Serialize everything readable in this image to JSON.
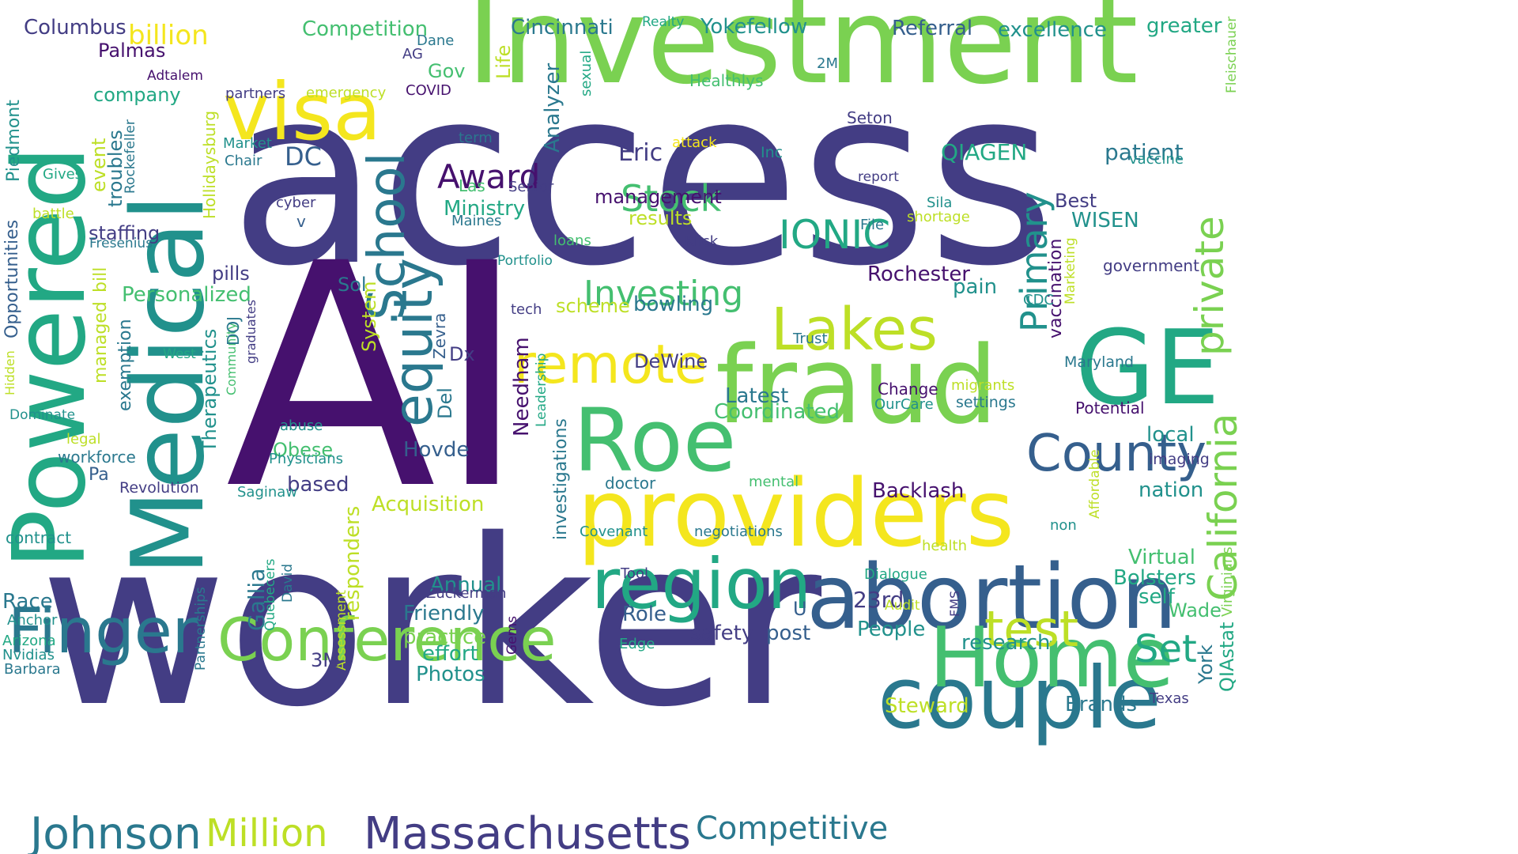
{
  "palette": {
    "dark_purple": "#46116e",
    "indigo": "#433d84",
    "blue": "#355f8d",
    "teal_blue": "#2a788e",
    "teal": "#21918c",
    "green_teal": "#22a884",
    "green": "#44bf70",
    "light_green": "#7ad151",
    "yellow_green": "#bddf26",
    "yellow": "#f4e61e",
    "background": "#ffffff"
  },
  "words": [
    "access",
    "AI",
    "worker",
    "Investment",
    "Medical",
    "Powered",
    "providers",
    "fraud",
    "abortion",
    "couple",
    "Roe",
    "GE",
    "Home",
    "region",
    "visa",
    "Finger",
    "Conference",
    "Massachusetts",
    "Johnson",
    "Million",
    "Competitive",
    "County",
    "equity",
    "School",
    "Lakes",
    "remote",
    "test",
    "California",
    "private",
    "Primary",
    "Investing",
    "Stock",
    "IONIC",
    "Award",
    "Set",
    "Cincinnati",
    "Yokefellow",
    "Referral",
    "excellence",
    "greater",
    "Competition",
    "billion",
    "Columbus",
    "Palmas",
    "Gov",
    "Dane",
    "AG",
    "Realty",
    "Life",
    "Analyzer",
    "Healthlys",
    "2M",
    "Fleischauer",
    "company",
    "Adtalem",
    "partners",
    "emergency",
    "COVID",
    "sexual",
    "Seton",
    "Eric",
    "attack",
    "QIAGEN",
    "patient",
    "vaccine",
    "Inc",
    "DC",
    "Market",
    "Chair",
    "term",
    "management",
    "results",
    "Las",
    "Senior",
    "Ministry",
    "Maines",
    "report",
    "File",
    "Sila",
    "shortage",
    "Best",
    "WISEN",
    "Gives",
    "battle",
    "Rockefeller",
    "troubles",
    "event",
    "Hollidaysburg",
    "Piedmont",
    "Opportunities",
    "staffing",
    "Fresenius",
    "Klick",
    "loans",
    "Portfolio",
    "pills",
    "Personalized",
    "bill",
    "managed",
    "exemption",
    "cyber",
    "v",
    "Sol",
    "scheme",
    "bowling",
    "tech",
    "Rochester",
    "pain",
    "government",
    "vaccination",
    "Marketing",
    "CDC",
    "Trust",
    "Maryland",
    "Zevra",
    "Dx",
    "Del",
    "System",
    "graduates",
    "Community",
    "DOJ",
    "Therapeutics",
    "West",
    "Hidden",
    "Dominate",
    "legal",
    "workforce",
    "abuse",
    "Obese",
    "Physicians",
    "based",
    "Hovde",
    "Needham",
    "Leadership",
    "investigations",
    "DeWine",
    "Latest",
    "Coordinated",
    "Change",
    "migrants",
    "OurCare",
    "settings",
    "Potential",
    "local",
    "Affordable",
    "imaging",
    "nation",
    "Backlash",
    "doctor",
    "mental",
    "Revolution",
    "Saginaw",
    "Pa",
    "contract",
    "Acquisition",
    "Covenant",
    "negotiations",
    "non",
    "health",
    "Virtual",
    "Bolsters",
    "self",
    "Wade",
    "Race",
    "Anchor",
    "Arizona",
    "Nvidias",
    "Barbara",
    "Partnerships",
    "Quebecers",
    "David",
    "Assessment",
    "responders",
    "Gallia",
    "Annual",
    "Zuckerman",
    "Friendly",
    "practice",
    "effort",
    "Photos",
    "Gems",
    "3M",
    "Role",
    "Tool",
    "safety",
    "U",
    "post",
    "23rd",
    "Dialogue",
    "Audit",
    "People",
    "FMS",
    "research",
    "Edge",
    "Steward",
    "Brands",
    "Texas",
    "York",
    "QIAstat",
    "Virginians"
  ]
}
